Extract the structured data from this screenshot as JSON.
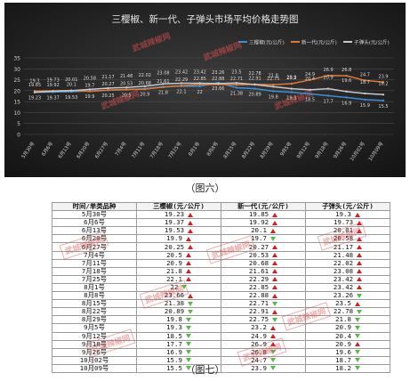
{
  "chart_data": {
    "type": "line",
    "title": "三樱椒、新一代、子弹头市场平均价格走势图",
    "categories": [
      "5月30号",
      "6月6号",
      "6月13号",
      "6月20号",
      "6月27号",
      "7月4号",
      "7月11号",
      "7月18号",
      "7月25号",
      "8月1号",
      "8月8号",
      "8月15号",
      "8月22号",
      "8月29号",
      "9月5号",
      "9月12号",
      "9月18号",
      "9月26号",
      "10月02号",
      "10月09号"
    ],
    "ylim": [
      0,
      35
    ],
    "yticks": [
      0,
      5,
      10,
      15,
      20,
      25,
      30,
      35
    ],
    "grid": true,
    "legend_position": "top-right",
    "series": [
      {
        "name": "三樱椒(元/公斤)",
        "color": "#3b8fd9",
        "values": [
          19.23,
          19.37,
          19.53,
          19.9,
          20.25,
          20.5,
          20.9,
          21.8,
          22.1,
          22,
          23.66,
          21.38,
          20.89,
          19.8,
          19.3,
          18.5,
          17.7,
          16.9,
          15.9,
          15.5
        ]
      },
      {
        "name": "新一代(元/公斤)",
        "color": "#e07a32",
        "values": [
          19.85,
          19.92,
          20.1,
          19.7,
          20.27,
          20.53,
          20.68,
          21.61,
          22.29,
          22.85,
          22.88,
          22.71,
          22.91,
          22.75,
          23.2,
          24.9,
          26.9,
          26.8,
          24.7,
          23.9
        ]
      },
      {
        "name": "子弹头(元/公斤)",
        "color": "#c9c9c9",
        "values": [
          19.3,
          19.73,
          20.01,
          20.58,
          21.17,
          21.48,
          22.02,
          23.08,
          23.42,
          23.42,
          23.26,
          23.5,
          22.78,
          21.8,
          20.9,
          20.4,
          20.9,
          19.6,
          18.7,
          18.2
        ]
      }
    ]
  },
  "watermark_text": "武城辣椒网",
  "caption_six": "（图六）",
  "caption_seven": "（图七）",
  "table": {
    "headers": [
      "时间/单类品种",
      "三樱椒(元/公斤)",
      "新一代(元/公斤)",
      "子弹头(元/公斤)"
    ],
    "rows": [
      {
        "date": "5月30号",
        "v1": "19.23",
        "t1": "up",
        "v2": "19.85",
        "t2": "up",
        "v3": "19.3",
        "t3": "up"
      },
      {
        "date": "6月6号",
        "v1": "19.37",
        "t1": "up",
        "v2": "19.92",
        "t2": "up",
        "v3": "19.73",
        "t3": "up"
      },
      {
        "date": "6月13号",
        "v1": "19.53",
        "t1": "up",
        "v2": "20.1",
        "t2": "up",
        "v3": "20.01",
        "t3": "up"
      },
      {
        "date": "6月20号",
        "v1": "19.9",
        "t1": "up",
        "v2": "19.7",
        "t2": "down",
        "v3": "20.58",
        "t3": "up"
      },
      {
        "date": "6月27号",
        "v1": "20.25",
        "t1": "up",
        "v2": "20.27",
        "t2": "up",
        "v3": "21.17",
        "t3": "up"
      },
      {
        "date": "7月4号",
        "v1": "20.5",
        "t1": "up",
        "v2": "20.53",
        "t2": "up",
        "v3": "21.48",
        "t3": "up"
      },
      {
        "date": "7月11号",
        "v1": "20.9",
        "t1": "up",
        "v2": "20.68",
        "t2": "up",
        "v3": "22.02",
        "t3": "up"
      },
      {
        "date": "7月18号",
        "v1": "21.8",
        "t1": "up",
        "v2": "21.61",
        "t2": "up",
        "v3": "23.08",
        "t3": "up"
      },
      {
        "date": "7月25号",
        "v1": "22.1",
        "t1": "up",
        "v2": "22.29",
        "t2": "up",
        "v3": "23.42",
        "t3": "up"
      },
      {
        "date": "8月1号",
        "v1": "22",
        "t1": "down",
        "v2": "22.85",
        "t2": "up",
        "v3": "23.42",
        "t3": "up"
      },
      {
        "date": "8月8号",
        "v1": "23.66",
        "t1": "up",
        "v2": "22.88",
        "t2": "up",
        "v3": "23.26",
        "t3": "down"
      },
      {
        "date": "8月15号",
        "v1": "21.38",
        "t1": "down",
        "v2": "22.71",
        "t2": "down",
        "v3": "23.5",
        "t3": "up"
      },
      {
        "date": "8月22号",
        "v1": "20.89",
        "t1": "down",
        "v2": "22.91",
        "t2": "up",
        "v3": "22.78",
        "t3": "down"
      },
      {
        "date": "8月29号",
        "v1": "19.8",
        "t1": "down",
        "v2": "22.75",
        "t2": "down",
        "v3": "21.8",
        "t3": "down"
      },
      {
        "date": "9月5号",
        "v1": "19.3",
        "t1": "down",
        "v2": "23.2",
        "t2": "up",
        "v3": "20.9",
        "t3": "down"
      },
      {
        "date": "9月12号",
        "v1": "18.5",
        "t1": "down",
        "v2": "24.9",
        "t2": "up",
        "v3": "20.4",
        "t3": "down"
      },
      {
        "date": "9月18号",
        "v1": "17.7",
        "t1": "down",
        "v2": "26.9",
        "t2": "up",
        "v3": "20.9",
        "t3": "up"
      },
      {
        "date": "9月26号",
        "v1": "16.9",
        "t1": "down",
        "v2": "26.8",
        "t2": "down",
        "v3": "19.6",
        "t3": "down"
      },
      {
        "date": "10月02号",
        "v1": "15.9",
        "t1": "down",
        "v2": "24.7",
        "t2": "down",
        "v3": "18.7",
        "t3": "down"
      },
      {
        "date": "10月09号",
        "v1": "15.5",
        "t1": "down",
        "v2": "23.9",
        "t2": "down",
        "v3": "18.2",
        "t3": "down"
      }
    ]
  }
}
